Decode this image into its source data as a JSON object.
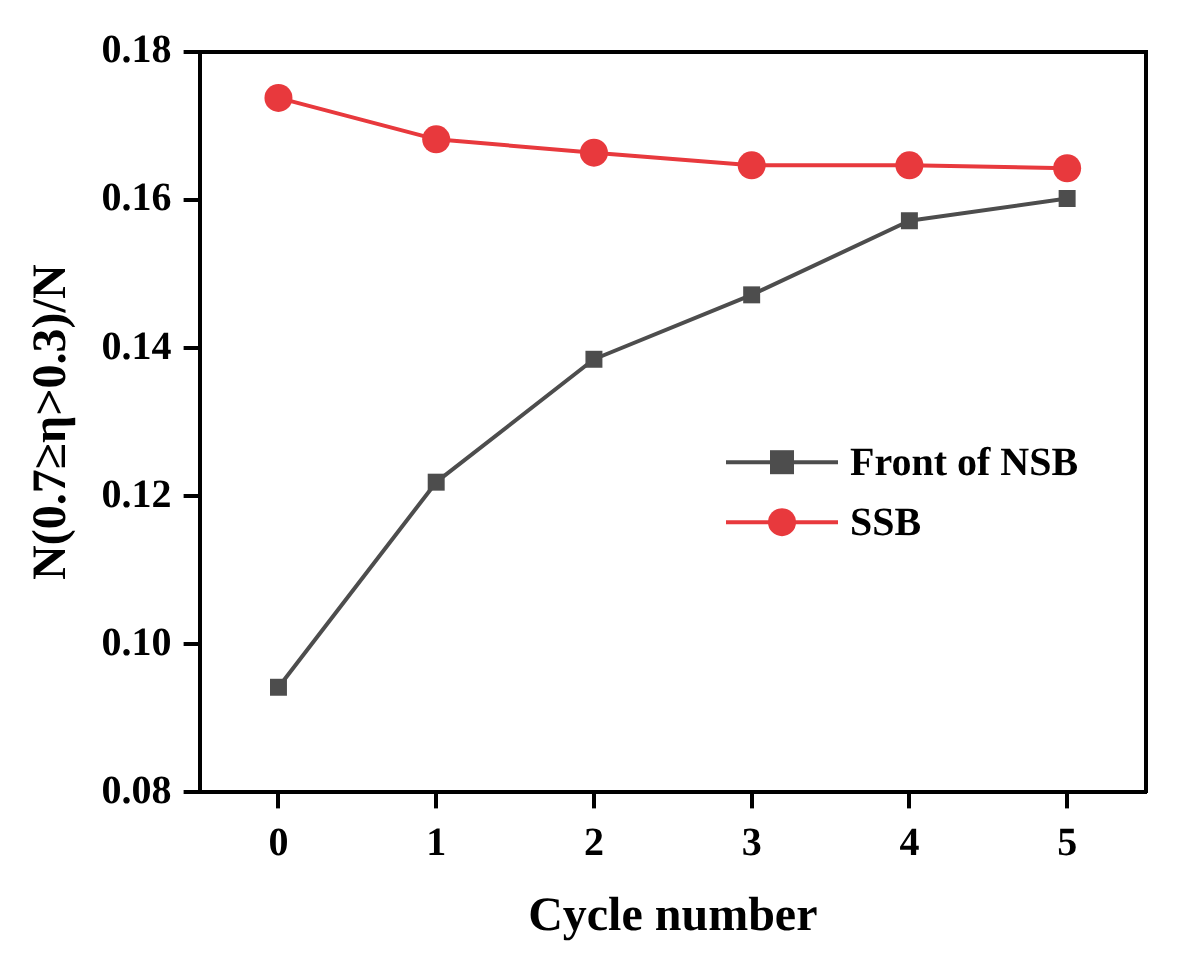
{
  "chart_data": {
    "type": "line",
    "xlabel": "Cycle number",
    "ylabel": "N(0.7≥η>0.3)/N",
    "x": [
      0,
      1,
      2,
      3,
      4,
      5
    ],
    "xlim": [
      -0.5,
      5.5
    ],
    "xticks": [
      0,
      1,
      2,
      3,
      4,
      5
    ],
    "ylim": [
      0.08,
      0.18
    ],
    "yticks": [
      0.08,
      {
        "value": 0.1,
        "label": "0.10"
      },
      0.12,
      0.14,
      0.16,
      0.18
    ],
    "grid": false,
    "legend": "right",
    "series": [
      {
        "name": "Front of NSB",
        "color": "#4d4d4d",
        "marker": "square",
        "values": [
          0.0942,
          0.1219,
          0.1385,
          0.1472,
          0.1572,
          0.1602
        ]
      },
      {
        "name": "SSB",
        "color": "#e8393d",
        "marker": "circle",
        "values": [
          0.1738,
          0.1682,
          0.1664,
          0.1647,
          0.1647,
          0.1643
        ]
      }
    ]
  }
}
